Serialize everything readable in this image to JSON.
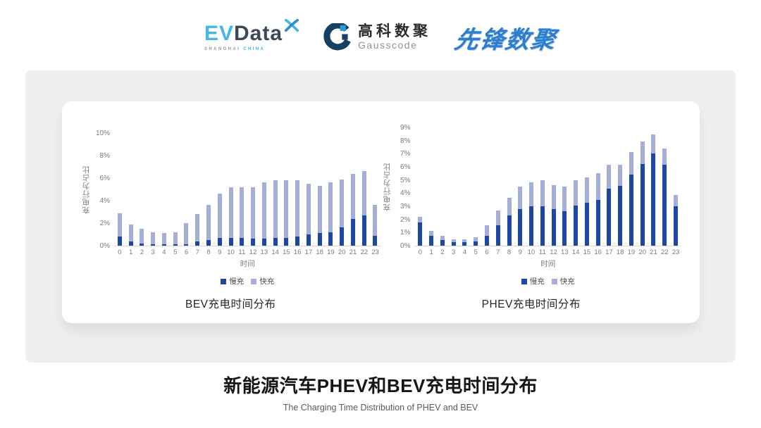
{
  "header": {
    "evdata": {
      "part1": "EV",
      "part2": "Data",
      "sub1": "SHANGHAI",
      "sub2": "CHINA"
    },
    "gausscode": {
      "name_cn": "高科数聚",
      "name_en": "Gausscode"
    },
    "xianfeng": {
      "name": "先锋数聚"
    }
  },
  "colors": {
    "slow_charge": "#1c47a4",
    "fast_charge": "#a6afd9",
    "panel_bg": "#efefef",
    "axis_line": "#d9d9d9",
    "tick_text": "#7b7b7b",
    "logo_blue": "#2b7fd0"
  },
  "chart_data": [
    {
      "type": "bar",
      "stacked": true,
      "caption": "BEV充电时间分布",
      "xlabel": "时间",
      "ylabel": "充电行为占比",
      "ylim": [
        0,
        10
      ],
      "ytick_step": 2,
      "ytick_suffix": "%",
      "grid": false,
      "legend_position": "bottom",
      "categories": [
        "0",
        "1",
        "2",
        "3",
        "4",
        "5",
        "6",
        "7",
        "8",
        "9",
        "10",
        "11",
        "12",
        "13",
        "14",
        "15",
        "16",
        "17",
        "18",
        "19",
        "20",
        "21",
        "22",
        "23"
      ],
      "series": [
        {
          "name": "慢充",
          "color": "#1c47a4",
          "values": [
            0.8,
            0.4,
            0.2,
            0.15,
            0.1,
            0.1,
            0.15,
            0.4,
            0.5,
            0.7,
            0.7,
            0.7,
            0.6,
            0.65,
            0.7,
            0.7,
            0.8,
            1.0,
            1.1,
            1.2,
            1.6,
            2.35,
            2.7,
            0.9
          ]
        },
        {
          "name": "快充",
          "color": "#a6afd9",
          "values": [
            2.1,
            1.5,
            1.3,
            1.05,
            1.0,
            1.1,
            1.85,
            2.4,
            3.1,
            3.9,
            4.5,
            4.5,
            4.6,
            4.95,
            5.1,
            5.1,
            5.0,
            4.5,
            4.2,
            4.4,
            4.3,
            4.05,
            3.9,
            2.7
          ]
        }
      ]
    },
    {
      "type": "bar",
      "stacked": true,
      "caption": "PHEV充电时间分布",
      "xlabel": "时间",
      "ylabel": "充电行为占比",
      "ylim": [
        0,
        9
      ],
      "ytick_step": 1,
      "ytick_suffix": "%",
      "grid": false,
      "legend_position": "bottom",
      "categories": [
        "0",
        "1",
        "2",
        "3",
        "4",
        "5",
        "6",
        "7",
        "8",
        "9",
        "10",
        "11",
        "12",
        "13",
        "14",
        "15",
        "16",
        "17",
        "18",
        "19",
        "20",
        "21",
        "22",
        "23"
      ],
      "series": [
        {
          "name": "慢充",
          "color": "#1c47a4",
          "values": [
            1.75,
            0.75,
            0.45,
            0.25,
            0.25,
            0.3,
            0.75,
            1.55,
            2.3,
            2.8,
            3.0,
            3.0,
            2.8,
            2.65,
            3.05,
            3.25,
            3.5,
            4.35,
            4.55,
            5.4,
            6.2,
            7.0,
            6.15,
            3.0
          ]
        },
        {
          "name": "快充",
          "color": "#a6afd9",
          "values": [
            0.45,
            0.4,
            0.3,
            0.25,
            0.25,
            0.35,
            0.8,
            1.15,
            1.35,
            1.7,
            1.8,
            2.0,
            1.8,
            1.85,
            1.95,
            1.95,
            2.0,
            1.8,
            1.6,
            1.7,
            1.75,
            1.45,
            1.25,
            0.85
          ]
        }
      ]
    }
  ],
  "footer": {
    "title": "新能源汽车PHEV和BEV充电时间分布",
    "subtitle": "The Charging Time Distribution of PHEV and BEV"
  }
}
